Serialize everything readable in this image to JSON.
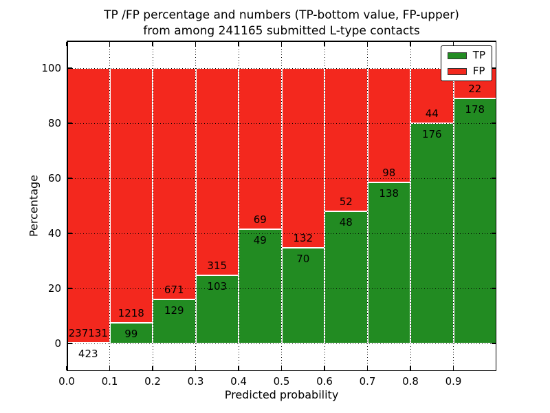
{
  "figure": {
    "title_line1": "TP /FP percentage and numbers (TP-bottom value, FP-upper)",
    "title_line2": "from among 241165 submitted L-type contacts"
  },
  "chart_data": {
    "type": "bar",
    "stacked": true,
    "normalized": "percent",
    "title": "TP /FP percentage and numbers (TP-bottom value, FP-upper) from among 241165 submitted L-type contacts",
    "xlabel": "Predicted probability",
    "ylabel": "Percentage",
    "total_contacts": 241165,
    "bin_width": 0.1,
    "xlim": [
      0.0,
      1.0
    ],
    "ylim": [
      -10,
      110
    ],
    "x_ticks": [
      0.0,
      0.1,
      0.2,
      0.3,
      0.4,
      0.5,
      0.6,
      0.7,
      0.8,
      0.9
    ],
    "x_tick_labels": [
      "0.0",
      "0.1",
      "0.2",
      "0.3",
      "0.4",
      "0.5",
      "0.6",
      "0.7",
      "0.8",
      "0.9"
    ],
    "y_ticks": [
      0,
      20,
      40,
      60,
      80,
      100
    ],
    "grid": {
      "style": "dotted",
      "color": "#000000",
      "over_bars": true
    },
    "bar_edge_color": "#ffffff",
    "series": [
      {
        "name": "TP",
        "color": "#228b22",
        "counts": [
          423,
          99,
          129,
          103,
          49,
          70,
          48,
          138,
          176,
          178
        ]
      },
      {
        "name": "FP",
        "color": "#f3281e",
        "counts": [
          237131,
          1218,
          671,
          315,
          69,
          132,
          52,
          98,
          44,
          22
        ]
      }
    ],
    "tp_percent_by_bin": [
      0.18,
      7.52,
      16.13,
      24.64,
      41.53,
      34.65,
      48.0,
      58.47,
      80.0,
      89.0
    ],
    "legend": {
      "position": "upper right",
      "entries": [
        {
          "label": "TP",
          "color": "#228b22"
        },
        {
          "label": "FP",
          "color": "#f3281e"
        }
      ]
    }
  }
}
